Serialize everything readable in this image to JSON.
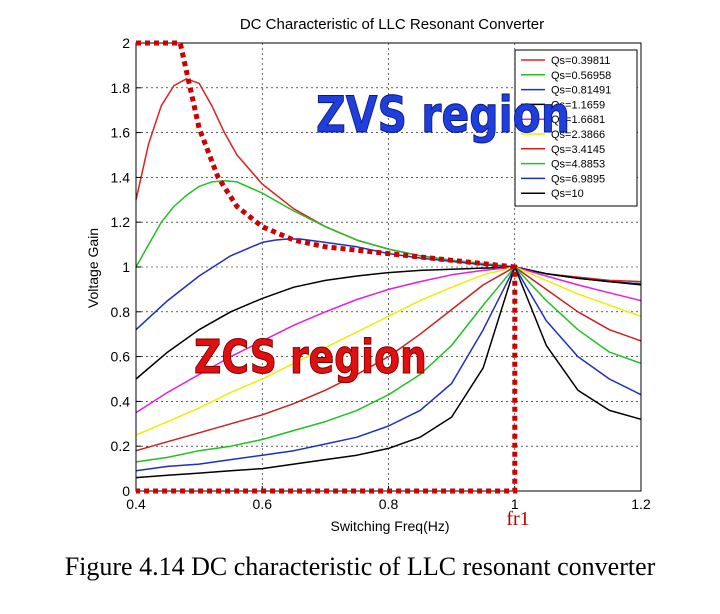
{
  "caption": "Figure 4.14 DC characteristic of LLC resonant converter",
  "fr1_label": "fr1",
  "chart_data": {
    "type": "line",
    "title": "DC Characteristic of LLC Resonant Converter",
    "xlabel": "Switching Freq(Hz)",
    "ylabel": "Voltage Gain",
    "xlim": [
      0.4,
      1.2
    ],
    "ylim": [
      0,
      2
    ],
    "xticks": [
      0.4,
      0.6,
      0.8,
      1,
      1.2
    ],
    "xtick_labels": [
      "0.4",
      "0.6",
      "0.8",
      "1",
      "1.2"
    ],
    "yticks": [
      0,
      0.2,
      0.4,
      0.6,
      0.8,
      1,
      1.2,
      1.4,
      1.6,
      1.8,
      2
    ],
    "ytick_labels": [
      "0",
      "0.2",
      "0.4",
      "0.6",
      "0.8",
      "1",
      "1.2",
      "1.4",
      "1.6",
      "1.8",
      "2"
    ],
    "grid": true,
    "legend_position": "top-right",
    "annotations": [
      {
        "text": "ZVS region",
        "color": "#1f3fdc"
      },
      {
        "text": "ZCS region",
        "color": "#e01010"
      }
    ],
    "boundary_color": "#cc0000",
    "series": [
      {
        "name": "Qs=0.39811",
        "color": "#e02020",
        "x": [
          0.4,
          0.42,
          0.44,
          0.46,
          0.48,
          0.5,
          0.52,
          0.54,
          0.56,
          0.6,
          0.65,
          0.7,
          0.75,
          0.8,
          0.85,
          0.9,
          0.95,
          1.0,
          1.05,
          1.1,
          1.15,
          1.2
        ],
        "y": [
          1.3,
          1.55,
          1.72,
          1.81,
          1.84,
          1.82,
          1.72,
          1.6,
          1.5,
          1.37,
          1.26,
          1.18,
          1.12,
          1.08,
          1.05,
          1.03,
          1.015,
          1.0,
          0.97,
          0.955,
          0.94,
          0.935
        ]
      },
      {
        "name": "Qs=0.56958",
        "color": "#22c022",
        "x": [
          0.4,
          0.42,
          0.44,
          0.46,
          0.48,
          0.5,
          0.52,
          0.54,
          0.56,
          0.6,
          0.65,
          0.7,
          0.75,
          0.8,
          0.85,
          0.9,
          0.95,
          1.0,
          1.05,
          1.1,
          1.15,
          1.2
        ],
        "y": [
          1.0,
          1.1,
          1.2,
          1.27,
          1.32,
          1.36,
          1.38,
          1.385,
          1.38,
          1.33,
          1.25,
          1.18,
          1.12,
          1.08,
          1.05,
          1.03,
          1.015,
          1.0,
          0.97,
          0.95,
          0.935,
          0.925
        ]
      },
      {
        "name": "Qs=0.81491",
        "color": "#1f2fc0",
        "x": [
          0.4,
          0.45,
          0.5,
          0.55,
          0.6,
          0.62,
          0.64,
          0.66,
          0.7,
          0.75,
          0.8,
          0.85,
          0.9,
          0.95,
          1.0,
          1.05,
          1.1,
          1.15,
          1.2
        ],
        "y": [
          0.72,
          0.85,
          0.96,
          1.05,
          1.11,
          1.12,
          1.125,
          1.125,
          1.11,
          1.09,
          1.06,
          1.04,
          1.025,
          1.01,
          1.0,
          0.97,
          0.95,
          0.935,
          0.925
        ]
      },
      {
        "name": "Qs=1.1659",
        "color": "#000000",
        "x": [
          0.4,
          0.45,
          0.5,
          0.55,
          0.6,
          0.65,
          0.7,
          0.75,
          0.8,
          0.85,
          0.9,
          0.95,
          1.0,
          1.05,
          1.1,
          1.15,
          1.2
        ],
        "y": [
          0.5,
          0.62,
          0.72,
          0.8,
          0.86,
          0.91,
          0.94,
          0.96,
          0.975,
          0.985,
          0.99,
          0.995,
          1.0,
          0.97,
          0.95,
          0.935,
          0.92
        ]
      },
      {
        "name": "Qs=1.6681",
        "color": "#e020e0",
        "x": [
          0.4,
          0.45,
          0.5,
          0.55,
          0.6,
          0.65,
          0.7,
          0.75,
          0.8,
          0.85,
          0.9,
          0.95,
          1.0,
          1.05,
          1.1,
          1.15,
          1.2
        ],
        "y": [
          0.35,
          0.44,
          0.52,
          0.6,
          0.67,
          0.74,
          0.8,
          0.855,
          0.9,
          0.935,
          0.965,
          0.985,
          1.0,
          0.96,
          0.92,
          0.885,
          0.85
        ]
      },
      {
        "name": "Qs=2.3866",
        "color": "#eeee00",
        "x": [
          0.4,
          0.45,
          0.5,
          0.55,
          0.6,
          0.65,
          0.7,
          0.75,
          0.8,
          0.85,
          0.9,
          0.95,
          1.0,
          1.05,
          1.1,
          1.15,
          1.2
        ],
        "y": [
          0.25,
          0.31,
          0.37,
          0.44,
          0.5,
          0.57,
          0.64,
          0.71,
          0.78,
          0.85,
          0.91,
          0.965,
          1.0,
          0.94,
          0.88,
          0.83,
          0.78
        ]
      },
      {
        "name": "Qs=3.4145",
        "color": "#cc2020",
        "x": [
          0.4,
          0.45,
          0.5,
          0.55,
          0.6,
          0.65,
          0.7,
          0.75,
          0.8,
          0.85,
          0.9,
          0.95,
          1.0,
          1.05,
          1.1,
          1.15,
          1.2
        ],
        "y": [
          0.18,
          0.22,
          0.26,
          0.3,
          0.34,
          0.39,
          0.45,
          0.52,
          0.6,
          0.7,
          0.81,
          0.92,
          1.0,
          0.9,
          0.8,
          0.72,
          0.67
        ]
      },
      {
        "name": "Qs=4.8853",
        "color": "#22c022",
        "x": [
          0.4,
          0.45,
          0.5,
          0.55,
          0.6,
          0.65,
          0.7,
          0.75,
          0.8,
          0.85,
          0.9,
          0.95,
          1.0,
          1.05,
          1.1,
          1.15,
          1.2
        ],
        "y": [
          0.13,
          0.15,
          0.18,
          0.2,
          0.23,
          0.27,
          0.31,
          0.36,
          0.43,
          0.52,
          0.65,
          0.83,
          1.0,
          0.85,
          0.72,
          0.62,
          0.57
        ]
      },
      {
        "name": "Qs=6.9895",
        "color": "#1f2fc0",
        "x": [
          0.4,
          0.45,
          0.5,
          0.55,
          0.6,
          0.65,
          0.7,
          0.75,
          0.8,
          0.85,
          0.9,
          0.95,
          1.0,
          1.05,
          1.1,
          1.15,
          1.2
        ],
        "y": [
          0.09,
          0.11,
          0.12,
          0.14,
          0.16,
          0.18,
          0.21,
          0.24,
          0.29,
          0.36,
          0.48,
          0.72,
          1.0,
          0.76,
          0.6,
          0.5,
          0.43
        ]
      },
      {
        "name": "Qs=10",
        "color": "#000000",
        "x": [
          0.4,
          0.45,
          0.5,
          0.55,
          0.6,
          0.65,
          0.7,
          0.75,
          0.8,
          0.85,
          0.9,
          0.95,
          1.0,
          1.05,
          1.1,
          1.15,
          1.2
        ],
        "y": [
          0.06,
          0.07,
          0.08,
          0.09,
          0.1,
          0.12,
          0.14,
          0.16,
          0.19,
          0.24,
          0.33,
          0.55,
          1.0,
          0.65,
          0.45,
          0.36,
          0.32
        ]
      }
    ],
    "boundary": {
      "x": [
        0.4,
        0.4,
        0.47,
        0.5,
        0.53,
        0.56,
        0.6,
        0.65,
        0.7,
        0.8,
        0.9,
        1.0,
        1.0,
        0.4
      ],
      "y": [
        2.0,
        2.0,
        2.0,
        1.62,
        1.4,
        1.27,
        1.18,
        1.12,
        1.09,
        1.06,
        1.03,
        1.0,
        0.0,
        0.0
      ]
    }
  }
}
